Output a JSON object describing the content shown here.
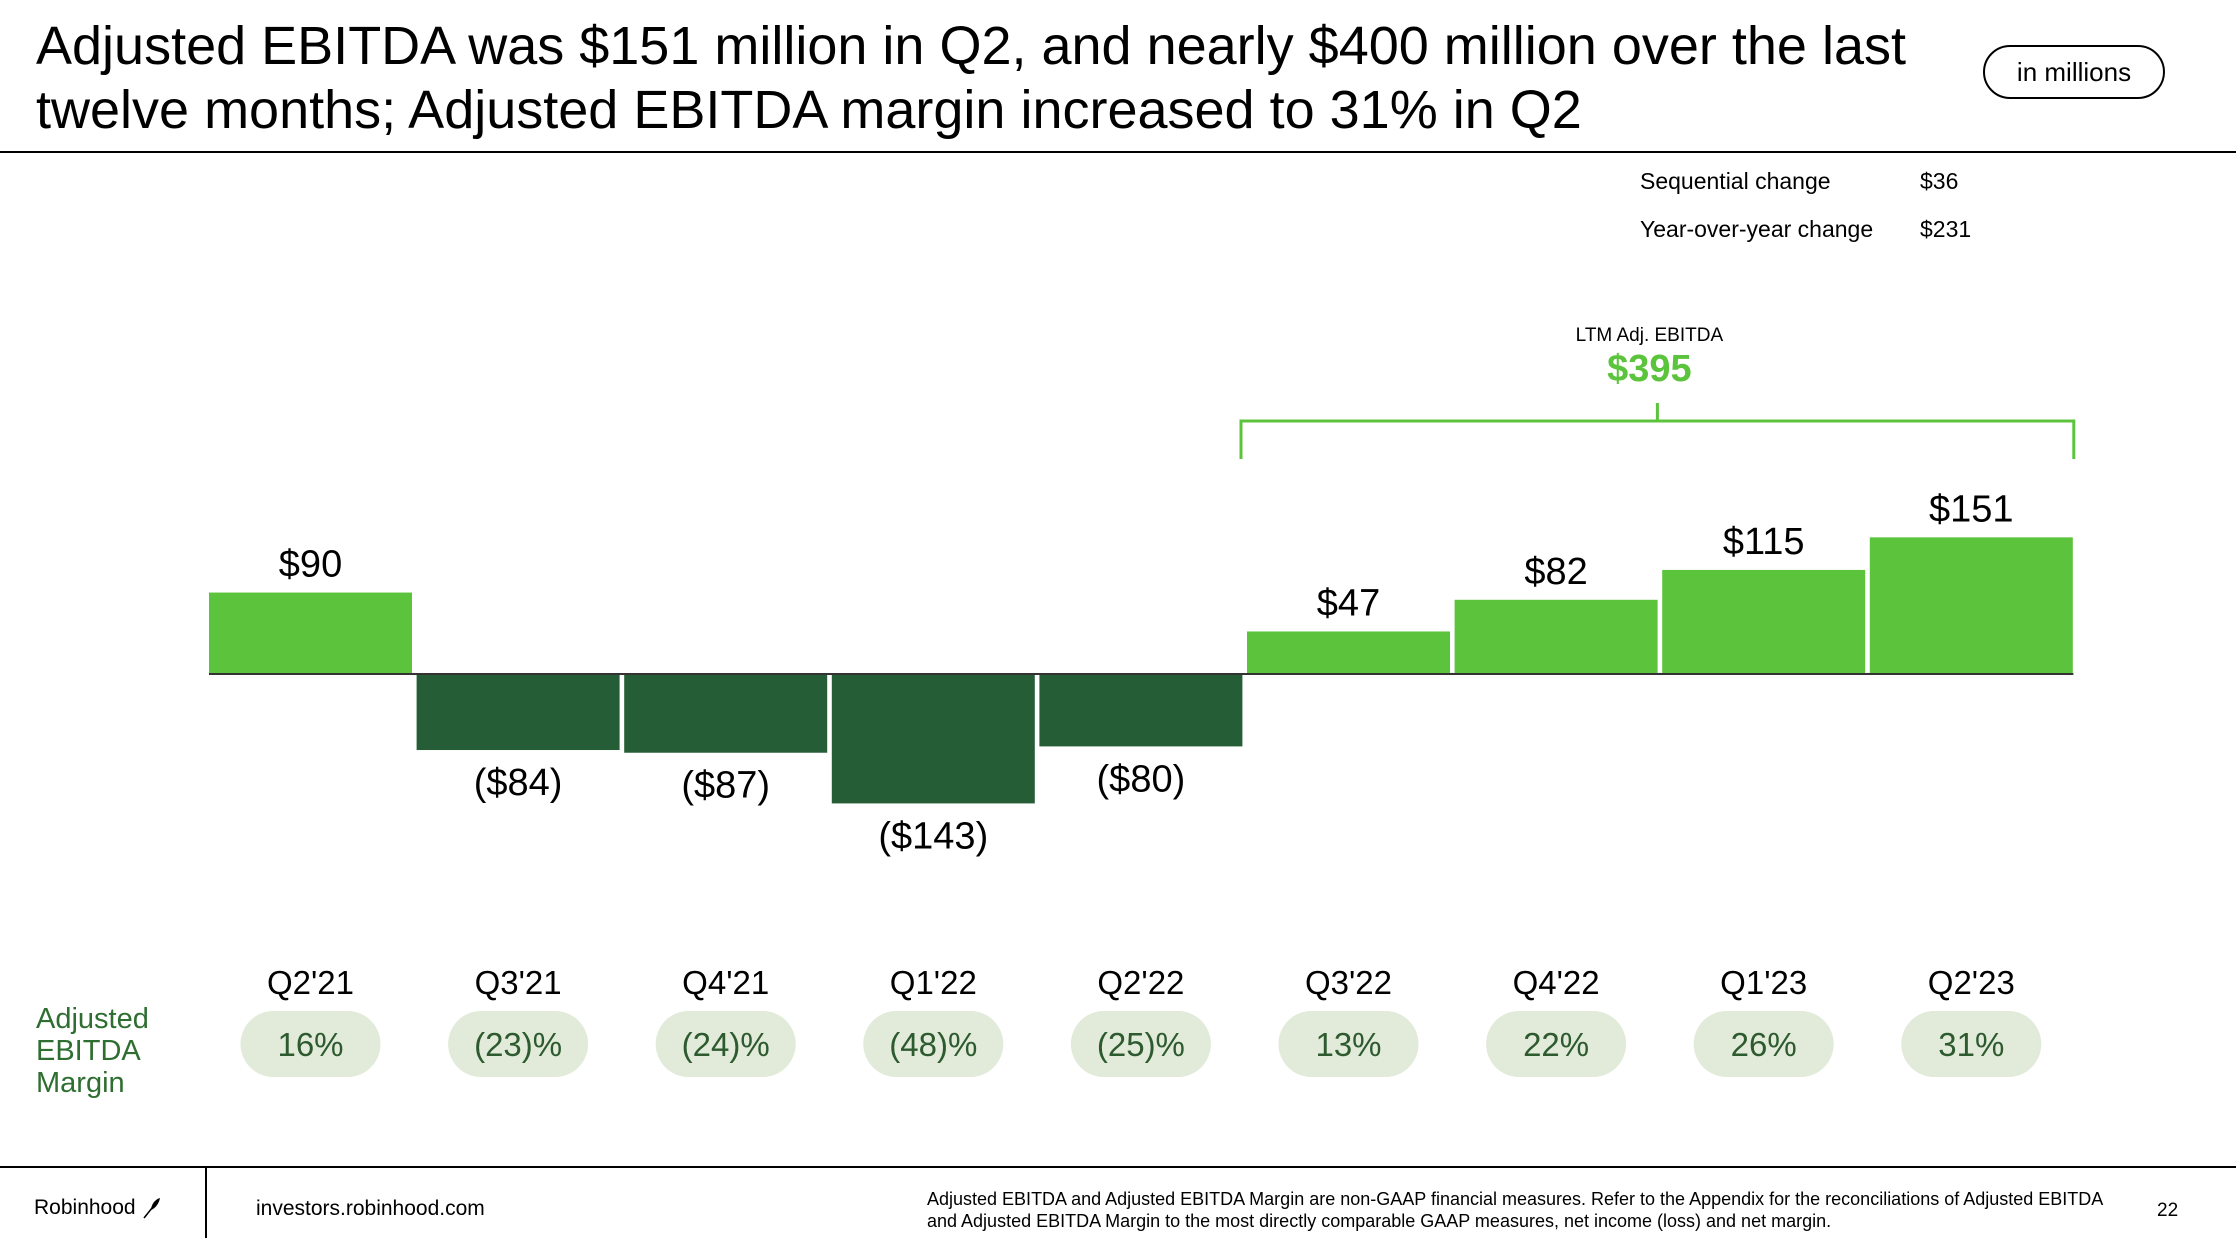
{
  "slide": {
    "title": "Adjusted EBITDA was $151 million in Q2, and nearly $400 million over the last twelve months; Adjusted EBITDA margin increased to 31% in Q2",
    "units_badge": "in millions",
    "page_number": "22"
  },
  "stats": [
    {
      "label": "Sequential change",
      "value": "$36"
    },
    {
      "label": "Year-over-year change",
      "value": "$231"
    }
  ],
  "ltm": {
    "label": "LTM Adj. EBITDA",
    "value": "$395"
  },
  "margin_row_label": "Adjusted EBITDA Margin",
  "footer": {
    "brand": "Robinhood",
    "brand_icon": "feather-icon",
    "site": "investors.robinhood.com",
    "disclaimer": "Adjusted EBITDA and Adjusted EBITDA Margin are non-GAAP financial measures. Refer to the Appendix for the reconciliations of Adjusted EBITDA and Adjusted EBITDA Margin to the most directly comparable GAAP measures, net income (loss) and net margin."
  },
  "colors": {
    "positive_bar": "#5cc43c",
    "negative_bar": "#245d36",
    "margin_pill": "#e2ead9",
    "ltm_accent": "#5cc43c",
    "margin_label": "#2f6e31"
  },
  "chart_data": {
    "type": "bar",
    "categories": [
      "Q2'21",
      "Q3'21",
      "Q4'21",
      "Q1'22",
      "Q2'22",
      "Q3'22",
      "Q4'22",
      "Q1'23",
      "Q2'23"
    ],
    "values": [
      90,
      -84,
      -87,
      -143,
      -80,
      47,
      82,
      115,
      151
    ],
    "value_labels": [
      "$90",
      "($84)",
      "($87)",
      "($143)",
      "($80)",
      "$47",
      "$82",
      "$115",
      "$151"
    ],
    "margins": [
      "16%",
      "(23)%",
      "(24)%",
      "(48)%",
      "(25)%",
      "13%",
      "22%",
      "26%",
      "31%"
    ],
    "ltm_bracket": {
      "from": "Q3'22",
      "to": "Q2'23"
    },
    "ylim": [
      -150,
      160
    ],
    "title": "",
    "xlabel": "",
    "ylabel": ""
  }
}
